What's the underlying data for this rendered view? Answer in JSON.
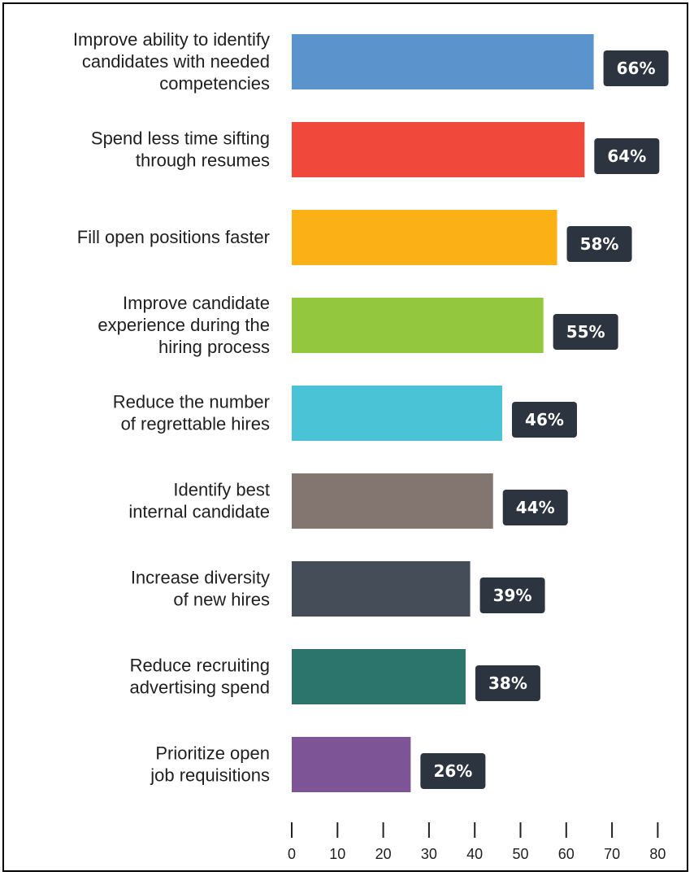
{
  "chart_data": {
    "type": "bar",
    "orientation": "horizontal",
    "categories": [
      [
        "Improve ability to identify",
        "candidates with needed",
        "competencies"
      ],
      [
        "Spend less time sifting",
        "through resumes"
      ],
      [
        "Fill open positions faster"
      ],
      [
        "Improve candidate",
        "experience during the",
        "hiring process"
      ],
      [
        "Reduce the number",
        "of regrettable hires"
      ],
      [
        "Identify best",
        "internal candidate"
      ],
      [
        "Increase diversity",
        "of new hires"
      ],
      [
        "Reduce recruiting",
        "advertising spend"
      ],
      [
        "Prioritize open",
        "job requisitions"
      ]
    ],
    "values": [
      66,
      64,
      58,
      55,
      46,
      44,
      39,
      38,
      26
    ],
    "value_labels": [
      "66%",
      "64%",
      "58%",
      "55%",
      "46%",
      "44%",
      "39%",
      "38%",
      "26%"
    ],
    "colors": [
      "#5b93cd",
      "#f0483b",
      "#fbb116",
      "#93c83e",
      "#4ac3d6",
      "#83756f",
      "#454d59",
      "#2b756d",
      "#7d5597"
    ],
    "label_box_color": "#2c3440",
    "xlim": [
      0,
      80
    ],
    "xticks": [
      0,
      10,
      20,
      30,
      40,
      50,
      60,
      70,
      80
    ],
    "title": "",
    "xlabel": "",
    "ylabel": ""
  }
}
